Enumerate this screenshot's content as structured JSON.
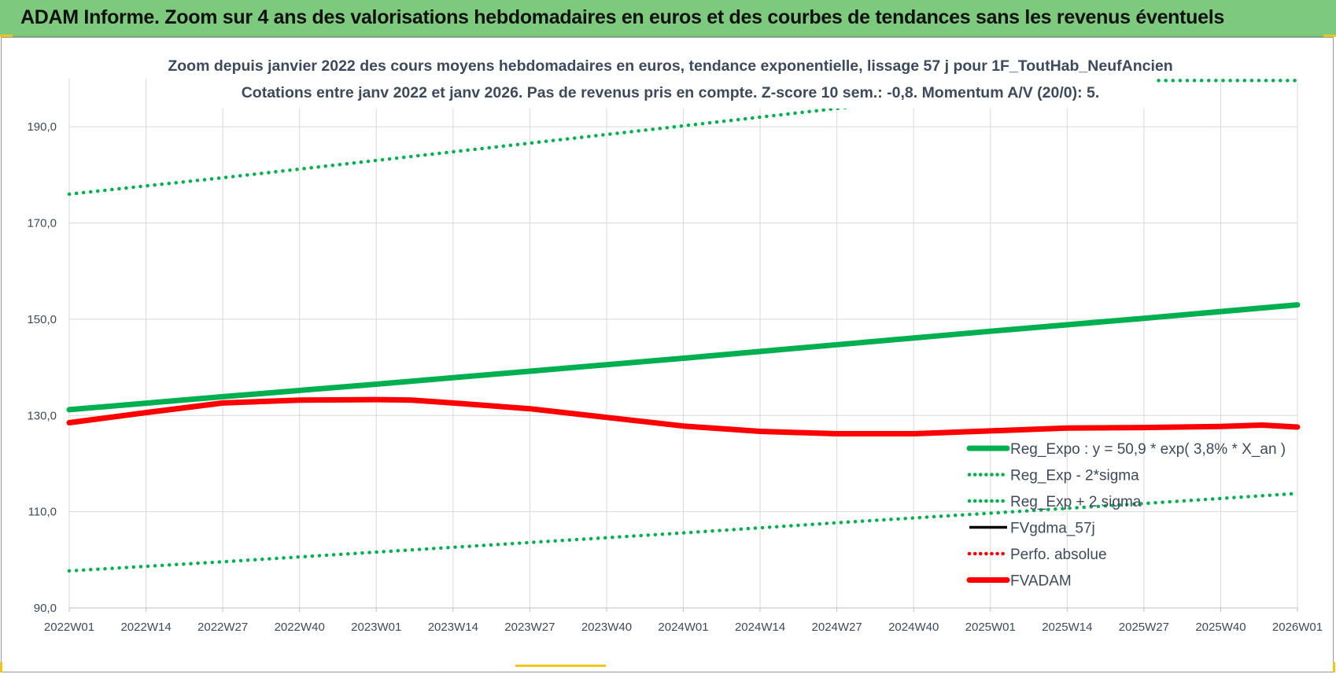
{
  "header": {
    "title": "ADAM Informe. Zoom sur 4 ans des valorisations hebdomadaires en euros et des courbes de tendances sans les revenus éventuels"
  },
  "colors": {
    "banner": "#7dc97d",
    "trend": "#00b050",
    "price": "#ff0000",
    "smooth": "#000000",
    "grid": "#d9d9d9",
    "text": "#3d4a5c"
  },
  "chart_data": {
    "type": "line",
    "title": "Zoom depuis janvier 2022 des cours moyens hebdomadaires en euros, tendance exponentielle, lissage 57 j pour 1F_ToutHab_NeufAncien",
    "subtitle": "Cotations entre janv 2022 et janv 2026. Pas de revenus pris en compte. Z-score 10 sem.: -0,8. Momentum A/V (20/0): 5.",
    "xlabel": "",
    "ylabel": "",
    "ylim": [
      90,
      200
    ],
    "y_ticks": [
      "90,0",
      "110,0",
      "130,0",
      "150,0",
      "170,0",
      "190,0"
    ],
    "x_ticks": [
      "2022W01",
      "2022W14",
      "2022W27",
      "2022W40",
      "2023W01",
      "2023W14",
      "2023W27",
      "2023W40",
      "2024W01",
      "2024W14",
      "2024W27",
      "2024W40",
      "2025W01",
      "2025W14",
      "2025W27",
      "2025W40",
      "2026W01"
    ],
    "x_tick_positions": [
      0,
      13,
      26,
      39,
      52,
      65,
      78,
      91,
      104,
      117,
      130,
      143,
      156,
      169,
      182,
      195,
      208
    ],
    "grid": true,
    "legend_position": "bottom-right",
    "series": [
      {
        "name": "Reg_Expo : y = 50,9 * exp( 3,8% *  X_an )",
        "style": "solid-thick",
        "color": "#00b050",
        "x": [
          0,
          26,
          52,
          78,
          104,
          130,
          156,
          182,
          208
        ],
        "values": [
          131.2,
          133.9,
          136.5,
          139.2,
          141.9,
          144.7,
          147.5,
          150.2,
          153.0
        ]
      },
      {
        "name": "Reg_Exp - 2*sigma",
        "style": "dotted",
        "color": "#00b050",
        "x": [
          0,
          26,
          52,
          78,
          104,
          130,
          156,
          182,
          208
        ],
        "values": [
          97.7,
          99.6,
          101.6,
          103.6,
          105.6,
          107.7,
          109.7,
          111.7,
          113.8
        ]
      },
      {
        "name": "Reg_Exp + 2 sigma",
        "style": "dotted",
        "color": "#00b050",
        "x": [
          0,
          26,
          52,
          78,
          104,
          130,
          156,
          182,
          208
        ],
        "values": [
          176.0,
          179.4,
          183.0,
          186.6,
          190.2,
          193.8,
          197.4,
          199.6,
          199.6
        ]
      },
      {
        "name": "FVgdma_57j",
        "style": "solid",
        "color": "#000000",
        "x": [
          0,
          13,
          26,
          39,
          52,
          58,
          65,
          78,
          91,
          104,
          117,
          130,
          143,
          156,
          169,
          182,
          195,
          202,
          208
        ],
        "values": [
          128.4,
          130.5,
          132.6,
          133.2,
          133.3,
          133.0,
          132.6,
          131.3,
          129.5,
          127.7,
          126.6,
          126.2,
          126.3,
          126.9,
          127.4,
          127.5,
          127.7,
          127.9,
          127.6
        ]
      },
      {
        "name": "Perfo. absolue",
        "style": "dotted",
        "color": "#ff0000",
        "x": [],
        "values": []
      },
      {
        "name": "FVADAM",
        "style": "solid-thick",
        "color": "#ff0000",
        "x": [
          0,
          13,
          26,
          39,
          52,
          58,
          65,
          78,
          91,
          104,
          117,
          130,
          143,
          156,
          169,
          182,
          195,
          202,
          208
        ],
        "values": [
          128.5,
          130.6,
          132.6,
          133.2,
          133.3,
          133.2,
          132.6,
          131.4,
          129.6,
          127.8,
          126.7,
          126.2,
          126.2,
          126.8,
          127.4,
          127.5,
          127.7,
          128.0,
          127.6
        ]
      }
    ]
  }
}
